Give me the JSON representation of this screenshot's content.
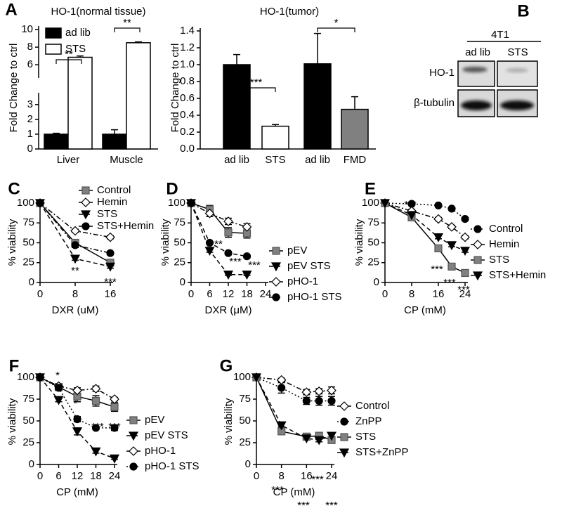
{
  "chart_data": [
    {
      "type": "bar",
      "panel": "A",
      "title": "HO-1(normal tissue)",
      "ylabel": "Fold Change to ctrl",
      "categories": [
        "Liver",
        "Muscle"
      ],
      "series": [
        {
          "name": "ad lib",
          "color": "#000000",
          "values": [
            1.0,
            1.0
          ],
          "errors": [
            0.06,
            0.3
          ]
        },
        {
          "name": "STS",
          "color": "#ffffff",
          "values": [
            6.85,
            8.5
          ],
          "errors": [
            0.15,
            0.1
          ]
        }
      ],
      "ylim": [
        0,
        10
      ],
      "y_break": [
        3.8,
        4.5
      ],
      "yticks": [
        0,
        1,
        2,
        3,
        6,
        8,
        10
      ],
      "legend": "upper left",
      "annotations": [
        "**",
        "**"
      ]
    },
    {
      "type": "bar",
      "title": "HO-1(tumor)",
      "ylabel": "Fold Change to ctrl",
      "categories": [
        "ad lib",
        "STS",
        "ad lib",
        "FMD"
      ],
      "values": [
        1.0,
        0.27,
        1.01,
        0.47
      ],
      "errors": [
        0.12,
        0.02,
        0.36,
        0.15
      ],
      "colors": [
        "#000000",
        "#ffffff",
        "#000000",
        "#808080"
      ],
      "ylim": [
        0,
        1.4
      ],
      "yticks": [
        {
          "value": 0,
          "label": "0.0"
        },
        {
          "value": 0.2,
          "label": "0.2"
        },
        {
          "value": 0.4,
          "label": "0.4"
        },
        {
          "value": 0.6,
          "label": "0.6"
        },
        {
          "value": 0.8,
          "label": "0.8"
        },
        {
          "value": 1.0,
          "label": "1.0"
        },
        {
          "value": 1.2,
          "label": "1.2"
        },
        {
          "value": 1.4,
          "label": "1.4"
        }
      ],
      "annotations": [
        "***",
        "*"
      ]
    },
    {
      "type": "line",
      "panel": "C",
      "xlabel": "DXR (uM)",
      "ylabel": "% viability",
      "x": [
        0,
        8,
        16
      ],
      "xlim": [
        0,
        16
      ],
      "xticks": [
        0,
        8,
        16
      ],
      "ylim": [
        0,
        100
      ],
      "yticks": [
        0,
        25,
        50,
        75,
        100
      ],
      "legend": "upper right",
      "series": [
        {
          "name": "Control",
          "color": "#808080",
          "marker": "square",
          "dash": "solid",
          "values": [
            100,
            50,
            25
          ],
          "errors": [
            2,
            4,
            4
          ]
        },
        {
          "name": "Hemin",
          "color": "#ffffff",
          "marker": "diamond",
          "dash": "dash-dot",
          "values": [
            100,
            65,
            57
          ],
          "errors": [
            1,
            2,
            2
          ]
        },
        {
          "name": "STS",
          "color": "#000000",
          "marker": "triangle-down",
          "dash": "dashed",
          "values": [
            100,
            30,
            20
          ],
          "errors": [
            1,
            2,
            2
          ]
        },
        {
          "name": "STS+Hemin",
          "color": "#000000",
          "marker": "circle",
          "dash": "dash-dot",
          "values": [
            100,
            47,
            37
          ],
          "errors": [
            1,
            3,
            2
          ]
        }
      ],
      "annotations": [
        "**",
        "***"
      ]
    },
    {
      "type": "line",
      "panel": "D",
      "xlabel": "DXR (μM)",
      "ylabel": "% viability",
      "x": [
        0,
        6,
        12,
        18
      ],
      "xlim": [
        0,
        24
      ],
      "xticks": [
        0,
        6,
        12,
        18,
        24
      ],
      "ylim": [
        0,
        100
      ],
      "yticks": [
        0,
        25,
        50,
        75,
        100
      ],
      "legend": "right",
      "series": [
        {
          "name": "pEV",
          "color": "#808080",
          "marker": "square",
          "dash": "solid",
          "values": [
            100,
            92,
            63,
            62
          ],
          "errors": [
            1,
            5,
            6,
            6
          ]
        },
        {
          "name": "pEV STS",
          "color": "#000000",
          "marker": "triangle-down",
          "dash": "dashed",
          "values": [
            100,
            40,
            10,
            10
          ],
          "errors": [
            1,
            2,
            1,
            1
          ]
        },
        {
          "name": "pHO-1",
          "color": "#ffffff",
          "marker": "diamond",
          "dash": "dash-dot",
          "values": [
            100,
            87,
            77,
            70
          ],
          "errors": [
            1,
            4,
            4,
            4
          ]
        },
        {
          "name": "pHO-1 STS",
          "color": "#000000",
          "marker": "circle",
          "dash": "dashed",
          "values": [
            100,
            50,
            37,
            33
          ],
          "errors": [
            1,
            2,
            2,
            2
          ]
        }
      ],
      "annotations": [
        "**",
        "***",
        "***"
      ]
    },
    {
      "type": "line",
      "panel": "E",
      "xlabel": "CP (mM)",
      "ylabel": "% viability",
      "x": [
        0,
        8,
        16,
        20,
        24
      ],
      "xlim": [
        0,
        24
      ],
      "xticks": [
        0,
        8,
        16,
        24
      ],
      "ylim": [
        0,
        100
      ],
      "yticks": [
        0,
        25,
        50,
        75,
        100
      ],
      "legend": "right",
      "series": [
        {
          "name": "Control",
          "color": "#000000",
          "marker": "circle",
          "dash": "dotted",
          "values": [
            100,
            99,
            97,
            93,
            80
          ],
          "errors": [
            1,
            1,
            1,
            1,
            2
          ]
        },
        {
          "name": "Hemin",
          "color": "#ffffff",
          "marker": "diamond",
          "dash": "dash-dot",
          "values": [
            100,
            90,
            80,
            70,
            57
          ],
          "errors": [
            1,
            2,
            2,
            2,
            2
          ]
        },
        {
          "name": "STS",
          "color": "#808080",
          "marker": "square",
          "dash": "solid",
          "values": [
            100,
            82,
            43,
            20,
            12
          ],
          "errors": [
            1,
            4,
            2,
            2,
            2
          ]
        },
        {
          "name": "STS+Hemin",
          "color": "#000000",
          "marker": "triangle-down",
          "dash": "dashed",
          "values": [
            100,
            85,
            57,
            47,
            40
          ],
          "errors": [
            1,
            2,
            2,
            2,
            2
          ]
        }
      ],
      "annotations": [
        "***",
        "***",
        "***",
        "***"
      ]
    },
    {
      "type": "line",
      "panel": "F",
      "xlabel": "CP (mM)",
      "ylabel": "% viability",
      "x": [
        0,
        6,
        12,
        18,
        24
      ],
      "xlim": [
        0,
        24
      ],
      "xticks": [
        0,
        6,
        12,
        18,
        24
      ],
      "ylim": [
        0,
        100
      ],
      "yticks": [
        0,
        25,
        50,
        75,
        100
      ],
      "legend": "lower right",
      "series": [
        {
          "name": "pEV",
          "color": "#808080",
          "marker": "square",
          "dash": "solid",
          "values": [
            100,
            89,
            78,
            73,
            66
          ],
          "errors": [
            1,
            3,
            6,
            6,
            5
          ]
        },
        {
          "name": "pEV STS",
          "color": "#000000",
          "marker": "triangle-down",
          "dash": "dashed",
          "values": [
            100,
            74,
            38,
            15,
            7
          ],
          "errors": [
            1,
            2,
            4,
            2,
            1
          ]
        },
        {
          "name": "pHO-1",
          "color": "#ffffff",
          "marker": "diamond",
          "dash": "dash-dot",
          "values": [
            100,
            90,
            85,
            87,
            75
          ],
          "errors": [
            1,
            2,
            3,
            3,
            2
          ]
        },
        {
          "name": "pHO-1 STS",
          "color": "#000000",
          "marker": "circle",
          "dash": "dotted",
          "values": [
            100,
            88,
            52,
            42,
            42
          ],
          "errors": [
            1,
            3,
            3,
            2,
            3
          ]
        }
      ],
      "annotations": [
        "*",
        "*",
        "***",
        "***"
      ]
    },
    {
      "type": "line",
      "panel": "G",
      "xlabel": "CP (mM)",
      "ylabel": "% viability",
      "x": [
        0,
        8,
        16,
        20,
        24
      ],
      "xlim": [
        0,
        24
      ],
      "xticks": [
        0,
        8,
        16,
        24
      ],
      "ylim": [
        0,
        100
      ],
      "yticks": [
        0,
        25,
        50,
        75,
        100
      ],
      "legend": "lower right",
      "series": [
        {
          "name": "Control",
          "color": "#ffffff",
          "marker": "diamond",
          "dash": "dash-dot",
          "values": [
            100,
            97,
            83,
            84,
            85
          ],
          "errors": [
            1,
            2,
            3,
            3,
            4
          ]
        },
        {
          "name": "ZnPP",
          "color": "#000000",
          "marker": "circle",
          "dash": "dotted",
          "values": [
            100,
            88,
            73,
            73,
            73
          ],
          "errors": [
            1,
            6,
            4,
            5,
            5
          ]
        },
        {
          "name": "STS",
          "color": "#808080",
          "marker": "square",
          "dash": "solid",
          "values": [
            100,
            38,
            32,
            33,
            28
          ],
          "errors": [
            1,
            2,
            2,
            2,
            2
          ]
        },
        {
          "name": "STS+ZnPP",
          "color": "#000000",
          "marker": "triangle-down",
          "dash": "dashed",
          "values": [
            100,
            45,
            30,
            28,
            33
          ],
          "errors": [
            1,
            2,
            2,
            2,
            2
          ]
        }
      ],
      "annotations": [
        "***",
        "***",
        "***",
        "***"
      ]
    }
  ],
  "blot": {
    "panel": "B",
    "cell_line": "4T1",
    "lanes": [
      "ad lib",
      "STS"
    ],
    "rows": [
      "HO-1",
      "β-tubulin"
    ]
  }
}
